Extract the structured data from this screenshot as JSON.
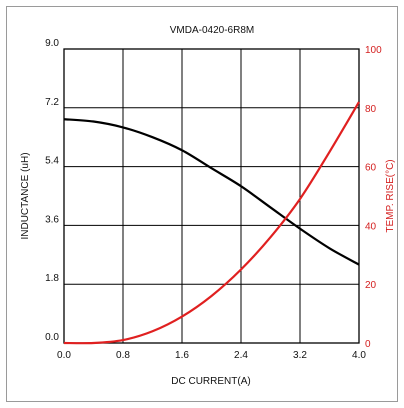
{
  "chart_data": {
    "type": "line",
    "title": "VMDA-0420-6R8M",
    "xlabel": "DC CURRENT(A)",
    "ylabel": "INDUCTANCE (uH)",
    "y2label": "TEMP. RISE(°C)",
    "xlim": [
      0,
      4.0
    ],
    "ylim": [
      0,
      9.0
    ],
    "y2lim": [
      0,
      100
    ],
    "xticks": [
      "0.0",
      "0.8",
      "1.6",
      "2.4",
      "3.2",
      "4.0"
    ],
    "yticks": [
      "0.0",
      "1.8",
      "3.6",
      "5.4",
      "7.2",
      "9.0"
    ],
    "y2ticks": [
      "0",
      "20",
      "40",
      "60",
      "80",
      "100"
    ],
    "grid": true,
    "series": [
      {
        "axis": "left",
        "color": "#000000",
        "x": [
          0,
          0.4,
          0.8,
          1.2,
          1.6,
          2.0,
          2.4,
          2.8,
          3.2,
          3.6,
          4.0
        ],
        "values": [
          6.85,
          6.78,
          6.6,
          6.3,
          5.9,
          5.35,
          4.8,
          4.15,
          3.5,
          2.9,
          2.4
        ]
      },
      {
        "axis": "right",
        "color": "#e02020",
        "x": [
          0,
          0.4,
          0.8,
          1.2,
          1.6,
          2.0,
          2.4,
          2.8,
          3.2,
          3.6,
          4.0
        ],
        "values": [
          0,
          0,
          1,
          4,
          9,
          16,
          25,
          36,
          49,
          65,
          82
        ]
      }
    ]
  }
}
